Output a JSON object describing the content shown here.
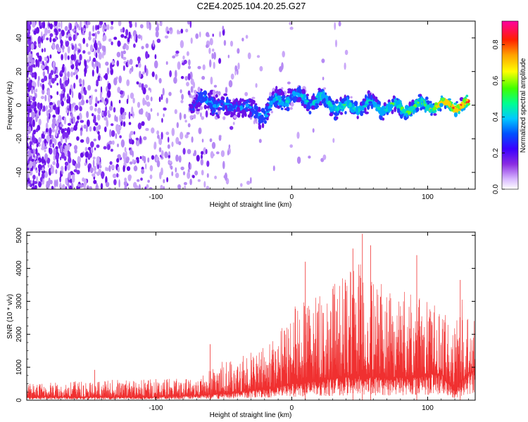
{
  "title": "C2E4.2025.104.20.25.G27",
  "chart_data": [
    {
      "type": "heatmap",
      "xlabel": "Height of straight line (km)",
      "ylabel": "Frequency (Hz)",
      "xlim": [
        -195,
        135
      ],
      "ylim": [
        -50,
        50
      ],
      "xticks": [
        -100,
        0,
        100
      ],
      "yticks": [
        -40,
        -20,
        0,
        20,
        40
      ],
      "colorbar": {
        "label": "Normalized spectral amplitude",
        "range": [
          0,
          0.93
        ],
        "ticks": [
          0.0,
          0.2,
          0.4,
          0.6,
          0.8
        ]
      },
      "ridge": {
        "x": [
          -75,
          -60,
          -50,
          -40,
          -30,
          -20,
          -10,
          0,
          10,
          25,
          40,
          55,
          70,
          85,
          100,
          115,
          130
        ],
        "center_hz": [
          -1,
          4,
          -2,
          1,
          -4,
          -5,
          3,
          5,
          4,
          2,
          -2,
          0,
          -1,
          -2,
          0,
          0,
          0
        ],
        "amplitude": [
          0.2,
          0.35,
          0.3,
          0.3,
          0.3,
          0.35,
          0.4,
          0.35,
          0.4,
          0.45,
          0.45,
          0.4,
          0.45,
          0.5,
          0.55,
          0.7,
          0.8
        ]
      }
    },
    {
      "type": "line",
      "xlabel": "Height of straight line (km)",
      "ylabel": "SNR (10 * v/v)",
      "xlim": [
        -195,
        135
      ],
      "ylim": [
        0,
        5100
      ],
      "xticks": [
        -100,
        0,
        100
      ],
      "yticks": [
        0,
        1000,
        2000,
        3000,
        4000,
        5000
      ],
      "color": "#f03030",
      "envelope": {
        "x": [
          -195,
          -150,
          -100,
          -70,
          -50,
          -30,
          -10,
          0,
          20,
          40,
          50,
          60,
          80,
          100,
          110,
          120,
          125,
          130,
          135
        ],
        "low": [
          100,
          100,
          100,
          150,
          200,
          300,
          400,
          500,
          600,
          700,
          800,
          700,
          700,
          800,
          800,
          300,
          600,
          800,
          900
        ],
        "high": [
          500,
          600,
          650,
          700,
          1200,
          1500,
          2000,
          2800,
          3200,
          3800,
          4200,
          3600,
          3400,
          3000,
          2800,
          2200,
          3400,
          2600,
          2600
        ]
      },
      "peaks": [
        {
          "x": -145,
          "y": 920
        },
        {
          "x": -60,
          "y": 1700
        },
        {
          "x": 10,
          "y": 4200
        },
        {
          "x": 45,
          "y": 4600
        },
        {
          "x": 52,
          "y": 5050
        },
        {
          "x": 58,
          "y": 4700
        },
        {
          "x": 92,
          "y": 4400
        },
        {
          "x": 124,
          "y": 3650
        }
      ]
    }
  ]
}
